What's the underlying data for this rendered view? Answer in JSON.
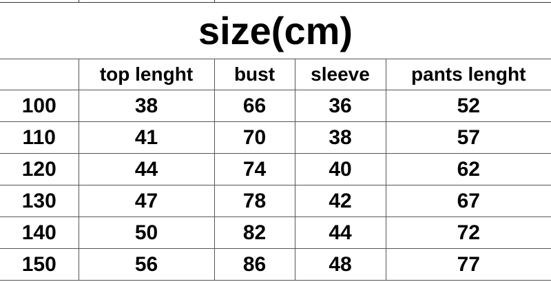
{
  "title": "size(cm)",
  "columns": [
    "",
    "top lenght",
    "bust",
    "sleeve",
    "pants lenght"
  ],
  "rows": [
    [
      "100",
      "38",
      "66",
      "36",
      "52"
    ],
    [
      "110",
      "41",
      "70",
      "38",
      "57"
    ],
    [
      "120",
      "44",
      "74",
      "40",
      "62"
    ],
    [
      "130",
      "47",
      "78",
      "42",
      "67"
    ],
    [
      "140",
      "50",
      "82",
      "44",
      "72"
    ],
    [
      "150",
      "56",
      "86",
      "48",
      "77"
    ]
  ]
}
